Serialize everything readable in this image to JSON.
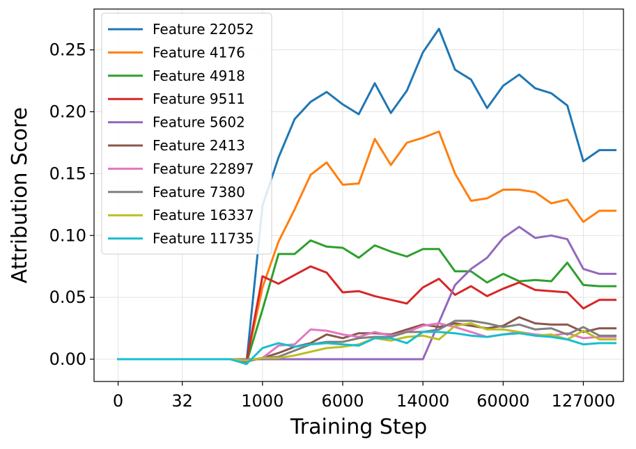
{
  "chart_data": {
    "type": "line",
    "title": "",
    "xlabel": "Training Step",
    "ylabel": "Attribution Score",
    "x_tick_labels": [
      "0",
      "32",
      "1000",
      "6000",
      "14000",
      "60000",
      "127000"
    ],
    "x_tick_positions": [
      0,
      4,
      9,
      14,
      19,
      24,
      29
    ],
    "y_ticks": [
      0.0,
      0.05,
      0.1,
      0.15,
      0.2,
      0.25
    ],
    "y_tick_labels": [
      "0.00",
      "0.05",
      "0.10",
      "0.15",
      "0.20",
      "0.25"
    ],
    "ylim": [
      -0.018,
      0.283
    ],
    "xlim": [
      -1.5,
      31.5
    ],
    "grid": true,
    "legend_position": "top-left",
    "x": [
      0,
      1,
      2,
      3,
      4,
      5,
      6,
      7,
      8,
      9,
      10,
      11,
      12,
      13,
      14,
      15,
      16,
      17,
      18,
      19,
      20,
      21,
      22,
      23,
      24,
      25,
      26,
      27,
      28,
      29,
      30,
      31
    ],
    "series": [
      {
        "name": "Feature 22052",
        "color": "#1f77b4",
        "values": [
          0,
          0,
          0,
          0,
          0,
          0,
          0,
          0,
          -0.003,
          0.124,
          0.163,
          0.194,
          0.208,
          0.216,
          0.206,
          0.198,
          0.223,
          0.199,
          0.217,
          0.248,
          0.267,
          0.234,
          0.226,
          0.203,
          0.221,
          0.23,
          0.219,
          0.215,
          0.205,
          0.16,
          0.169,
          0.169
        ]
      },
      {
        "name": "Feature 4176",
        "color": "#ff7f0e",
        "values": [
          0,
          0,
          0,
          0,
          0,
          0,
          0,
          0,
          -0.002,
          0.058,
          0.095,
          0.121,
          0.149,
          0.159,
          0.141,
          0.142,
          0.178,
          0.157,
          0.175,
          0.179,
          0.184,
          0.15,
          0.128,
          0.13,
          0.137,
          0.137,
          0.135,
          0.126,
          0.129,
          0.111,
          0.12,
          0.12
        ]
      },
      {
        "name": "Feature 4918",
        "color": "#2ca02c",
        "values": [
          0,
          0,
          0,
          0,
          0,
          0,
          0,
          0,
          -0.003,
          0.04,
          0.085,
          0.085,
          0.096,
          0.091,
          0.09,
          0.082,
          0.092,
          0.087,
          0.083,
          0.089,
          0.089,
          0.071,
          0.071,
          0.062,
          0.069,
          0.063,
          0.064,
          0.063,
          0.078,
          0.06,
          0.059,
          0.059
        ]
      },
      {
        "name": "Feature 9511",
        "color": "#d62728",
        "values": [
          0,
          0,
          0,
          0,
          0,
          0,
          0,
          0,
          -0.002,
          0.067,
          0.061,
          0.068,
          0.075,
          0.07,
          0.054,
          0.055,
          0.051,
          0.048,
          0.045,
          0.058,
          0.065,
          0.052,
          0.059,
          0.051,
          0.057,
          0.062,
          0.056,
          0.055,
          0.054,
          0.041,
          0.048,
          0.048
        ]
      },
      {
        "name": "Feature 5602",
        "color": "#9467bd",
        "values": [
          0,
          0,
          0,
          0,
          0,
          0,
          0,
          0,
          0,
          0,
          0,
          0,
          0,
          0,
          0,
          0,
          0,
          0,
          0,
          0,
          0.03,
          0.06,
          0.073,
          0.082,
          0.098,
          0.107,
          0.098,
          0.1,
          0.097,
          0.073,
          0.069,
          0.069
        ]
      },
      {
        "name": "Feature 2413",
        "color": "#8c564b",
        "values": [
          0,
          0,
          0,
          0,
          0,
          0,
          0,
          0,
          -0.001,
          0.001,
          0.005,
          0.01,
          0.013,
          0.02,
          0.017,
          0.021,
          0.021,
          0.02,
          0.024,
          0.028,
          0.026,
          0.029,
          0.027,
          0.025,
          0.027,
          0.034,
          0.029,
          0.028,
          0.028,
          0.022,
          0.025,
          0.025
        ]
      },
      {
        "name": "Feature 22897",
        "color": "#e377c2",
        "values": [
          0,
          0,
          0,
          0,
          0,
          0,
          0,
          0,
          -0.001,
          0.001,
          0.011,
          0.012,
          0.024,
          0.023,
          0.02,
          0.018,
          0.022,
          0.019,
          0.022,
          0.027,
          0.029,
          0.026,
          0.022,
          0.018,
          0.02,
          0.022,
          0.02,
          0.019,
          0.021,
          0.017,
          0.018,
          0.018
        ]
      },
      {
        "name": "Feature 7380",
        "color": "#7f7f7f",
        "values": [
          0,
          0,
          0,
          0,
          0,
          0,
          0,
          0,
          -0.002,
          0.001,
          0.002,
          0.007,
          0.012,
          0.014,
          0.014,
          0.017,
          0.018,
          0.018,
          0.022,
          0.022,
          0.024,
          0.031,
          0.031,
          0.029,
          0.026,
          0.028,
          0.024,
          0.025,
          0.02,
          0.026,
          0.019,
          0.019
        ]
      },
      {
        "name": "Feature 16337",
        "color": "#bcbd22",
        "values": [
          0,
          0,
          0,
          0,
          0,
          0,
          0,
          0,
          -0.001,
          0.001,
          0.001,
          0.003,
          0.006,
          0.009,
          0.01,
          0.012,
          0.017,
          0.015,
          0.018,
          0.019,
          0.016,
          0.027,
          0.029,
          0.024,
          0.024,
          0.022,
          0.019,
          0.02,
          0.016,
          0.023,
          0.016,
          0.016
        ]
      },
      {
        "name": "Feature 11735",
        "color": "#17becf",
        "values": [
          0,
          0,
          0,
          0,
          0,
          0,
          0,
          0,
          -0.004,
          0.009,
          0.013,
          0.01,
          0.012,
          0.013,
          0.012,
          0.011,
          0.017,
          0.017,
          0.013,
          0.022,
          0.022,
          0.021,
          0.019,
          0.018,
          0.02,
          0.021,
          0.019,
          0.018,
          0.016,
          0.012,
          0.013,
          0.013
        ]
      }
    ]
  }
}
